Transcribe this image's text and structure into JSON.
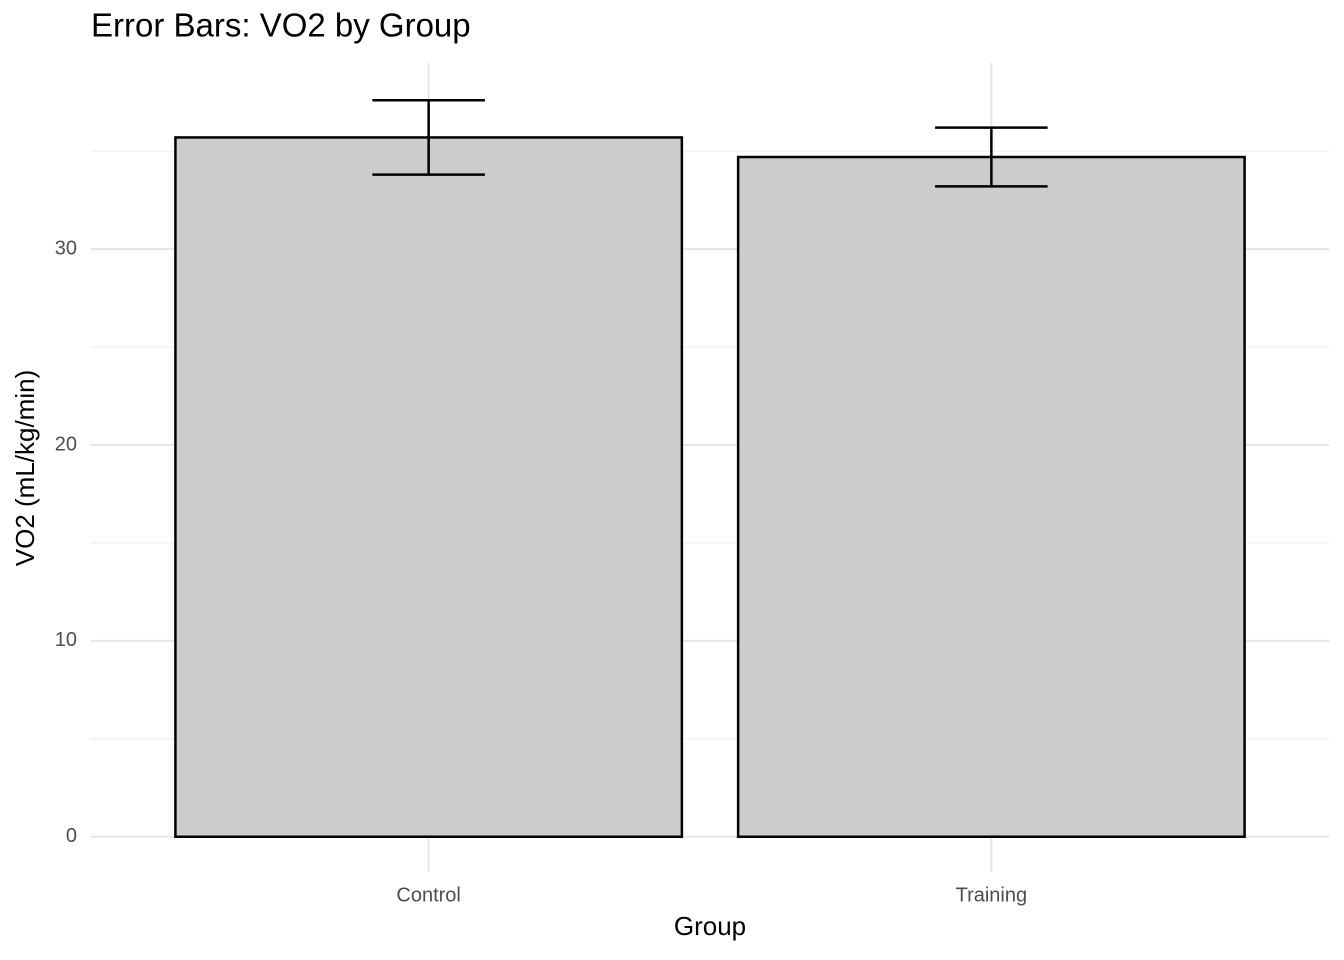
{
  "chart_data": {
    "type": "bar",
    "title": "Error Bars: VO2 by Group",
    "x_label": "Group",
    "y_label": "VO2 (mL/kg/min)",
    "categories": [
      "Control",
      "Training"
    ],
    "values": [
      35.7,
      34.7
    ],
    "errors": [
      1.9,
      1.5
    ],
    "color": "#c9c9c9",
    "edge_color": "#000000",
    "ylim": [
      -1.8,
      39.5
    ],
    "yticks": [
      0,
      10,
      20,
      30
    ],
    "minor_yticks": [
      5,
      15,
      25,
      35
    ],
    "grid": true
  }
}
